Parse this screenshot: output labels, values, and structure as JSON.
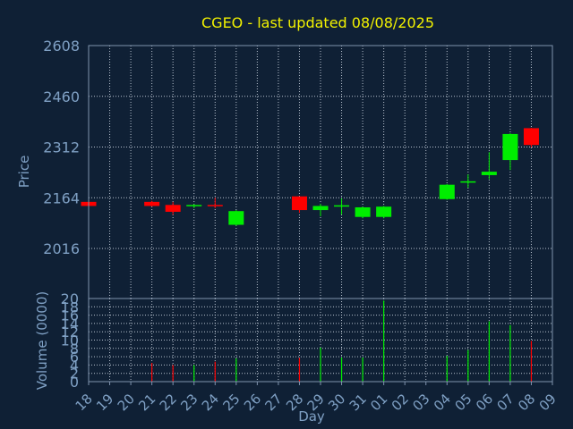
{
  "title": "CGEO - last updated 08/08/2025",
  "colors": {
    "background": "#0f2035",
    "plot_bg": "#0f2035",
    "frame": "#7f93ad",
    "grid": "#b8c2cf",
    "title": "#f2f200",
    "axis_text": "#7fa0c4",
    "up": "#00ee00",
    "down": "#ff0000"
  },
  "chart_data": [
    {
      "type": "candlestick",
      "ylabel": "Price",
      "ylim": [
        2016,
        2608
      ],
      "yticks": [
        2016,
        2164,
        2312,
        2460,
        2608
      ],
      "grid": true,
      "x": [
        "18",
        "19",
        "20",
        "21",
        "22",
        "23",
        "24",
        "25",
        "26",
        "27",
        "28",
        "29",
        "30",
        "31",
        "01",
        "02",
        "03",
        "04",
        "05",
        "06",
        "07",
        "08",
        "09"
      ],
      "candles": [
        {
          "day": "18",
          "open": 2152,
          "high": 2152,
          "low": 2140,
          "close": 2140
        },
        {
          "day": "21",
          "open": 2152,
          "high": 2155,
          "low": 2138,
          "close": 2140
        },
        {
          "day": "22",
          "open": 2143,
          "high": 2152,
          "low": 2114,
          "close": 2123
        },
        {
          "day": "23",
          "open": 2140,
          "high": 2145,
          "low": 2134,
          "close": 2143
        },
        {
          "day": "24",
          "open": 2143,
          "high": 2164,
          "low": 2134,
          "close": 2140
        },
        {
          "day": "25",
          "open": 2085,
          "high": 2128,
          "low": 2082,
          "close": 2125
        },
        {
          "day": "28",
          "open": 2168,
          "high": 2168,
          "low": 2120,
          "close": 2128
        },
        {
          "day": "29",
          "open": 2128,
          "high": 2146,
          "low": 2110,
          "close": 2140
        },
        {
          "day": "30",
          "open": 2140,
          "high": 2162,
          "low": 2115,
          "close": 2142
        },
        {
          "day": "31",
          "open": 2108,
          "high": 2138,
          "low": 2104,
          "close": 2136
        },
        {
          "day": "01",
          "open": 2108,
          "high": 2140,
          "low": 2104,
          "close": 2138
        },
        {
          "day": "04",
          "open": 2160,
          "high": 2204,
          "low": 2158,
          "close": 2202
        },
        {
          "day": "05",
          "open": 2208,
          "high": 2232,
          "low": 2193,
          "close": 2212
        },
        {
          "day": "06",
          "open": 2230,
          "high": 2297,
          "low": 2218,
          "close": 2240
        },
        {
          "day": "07",
          "open": 2274,
          "high": 2352,
          "low": 2245,
          "close": 2350
        },
        {
          "day": "08",
          "open": 2367,
          "high": 2368,
          "low": 2311,
          "close": 2318
        }
      ]
    },
    {
      "type": "bar",
      "xlabel": "Day",
      "ylabel": "Volume (0000)",
      "ylim": [
        0,
        20
      ],
      "yticks": [
        0,
        2,
        4,
        6,
        8,
        10,
        12,
        14,
        16,
        18,
        20
      ],
      "grid": true,
      "categories": [
        "18",
        "19",
        "20",
        "21",
        "22",
        "23",
        "24",
        "25",
        "26",
        "27",
        "28",
        "29",
        "30",
        "31",
        "01",
        "02",
        "03",
        "04",
        "05",
        "06",
        "07",
        "08",
        "09"
      ],
      "bars": [
        {
          "day": "21",
          "value": 4.5,
          "trend": "down"
        },
        {
          "day": "22",
          "value": 4,
          "trend": "down"
        },
        {
          "day": "23",
          "value": 4,
          "trend": "up"
        },
        {
          "day": "24",
          "value": 4.8,
          "trend": "down"
        },
        {
          "day": "25",
          "value": 5.6,
          "trend": "up"
        },
        {
          "day": "28",
          "value": 5.7,
          "trend": "down"
        },
        {
          "day": "29",
          "value": 8.2,
          "trend": "up"
        },
        {
          "day": "30",
          "value": 5.8,
          "trend": "up"
        },
        {
          "day": "31",
          "value": 5.8,
          "trend": "up"
        },
        {
          "day": "01",
          "value": 19.5,
          "trend": "up"
        },
        {
          "day": "04",
          "value": 6.2,
          "trend": "up"
        },
        {
          "day": "05",
          "value": 7.6,
          "trend": "up"
        },
        {
          "day": "06",
          "value": 14.5,
          "trend": "up"
        },
        {
          "day": "07",
          "value": 13.6,
          "trend": "up"
        },
        {
          "day": "08",
          "value": 9.8,
          "trend": "down"
        }
      ]
    }
  ]
}
